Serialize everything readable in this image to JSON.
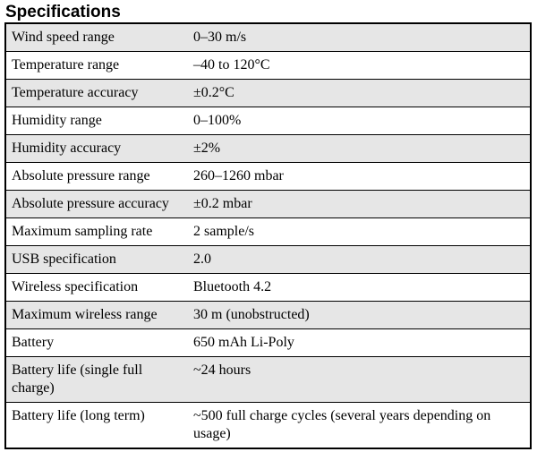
{
  "section": {
    "title": "Specifications"
  },
  "specs": [
    {
      "label": "Wind speed range",
      "value": "0–30 m/s"
    },
    {
      "label": "Temperature range",
      "value": "–40 to 120°C"
    },
    {
      "label": "Temperature accuracy",
      "value": "±0.2°C"
    },
    {
      "label": "Humidity range",
      "value": "0–100%"
    },
    {
      "label": "Humidity accuracy",
      "value": "±2%"
    },
    {
      "label": "Absolute pressure range",
      "value": "260–1260 mbar"
    },
    {
      "label": "Absolute pressure accuracy",
      "value": "±0.2 mbar"
    },
    {
      "label": "Maximum sampling rate",
      "value": "2 sample/s"
    },
    {
      "label": "USB specification",
      "value": "2.0"
    },
    {
      "label": "Wireless specification",
      "value": "Bluetooth 4.2"
    },
    {
      "label": "Maximum wireless range",
      "value": "30 m (unobstructed)"
    },
    {
      "label": "Battery",
      "value": "650 mAh Li-Poly"
    },
    {
      "label": "Battery life (single full charge)",
      "value": "~24 hours"
    },
    {
      "label": "Battery life (long term)",
      "value": "~500 full charge cycles (several years depending on usage)"
    }
  ]
}
